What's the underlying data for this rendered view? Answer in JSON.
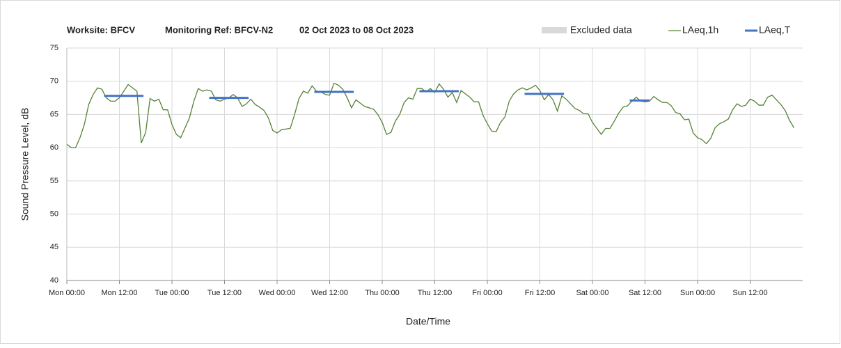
{
  "chart_data": {
    "type": "line",
    "title": [
      "Worksite: BFCV",
      "Monitoring Ref: BFCV-N2",
      "02 Oct 2023 to 08 Oct 2023"
    ],
    "xlabel": "Date/Time",
    "ylabel": "Sound Pressure Level, dB",
    "legend_extra": {
      "name": "Excluded data",
      "color": "#d9d9d9"
    },
    "xlim": [
      0,
      168
    ],
    "ylim": [
      40,
      75
    ],
    "grid": true,
    "xticks": [
      {
        "value": 0,
        "label": "Mon 00:00"
      },
      {
        "value": 12,
        "label": "Mon 12:00"
      },
      {
        "value": 24,
        "label": "Tue 00:00"
      },
      {
        "value": 36,
        "label": "Tue 12:00"
      },
      {
        "value": 48,
        "label": "Wed 00:00"
      },
      {
        "value": 60,
        "label": "Wed 12:00"
      },
      {
        "value": 72,
        "label": "Thu 00:00"
      },
      {
        "value": 84,
        "label": "Thu 12:00"
      },
      {
        "value": 96,
        "label": "Fri 00:00"
      },
      {
        "value": 108,
        "label": "Fri 12:00"
      },
      {
        "value": 120,
        "label": "Sat 00:00"
      },
      {
        "value": 132,
        "label": "Sat 12:00"
      },
      {
        "value": 144,
        "label": "Sun 00:00"
      },
      {
        "value": 156,
        "label": "Sun 12:00"
      }
    ],
    "yticks": [
      40,
      45,
      50,
      55,
      60,
      65,
      70,
      75
    ],
    "series": [
      {
        "name": "LAeq,1h",
        "color": "#548235",
        "width": 1.3,
        "x": [
          0,
          1,
          2,
          3,
          4,
          5,
          6,
          7,
          8,
          9,
          10,
          11,
          12,
          13,
          14,
          15,
          16,
          17,
          18,
          19,
          20,
          21,
          22,
          23,
          24,
          25,
          26,
          27,
          28,
          29,
          30,
          31,
          32,
          33,
          34,
          35,
          36,
          37,
          38,
          39,
          40,
          41,
          42,
          43,
          44,
          45,
          46,
          47,
          48,
          49,
          50,
          51,
          52,
          53,
          54,
          55,
          56,
          57,
          58,
          59,
          60,
          61,
          62,
          63,
          64,
          65,
          66,
          67,
          68,
          69,
          70,
          71,
          72,
          73,
          74,
          75,
          76,
          77,
          78,
          79,
          80,
          81,
          82,
          83,
          84,
          85,
          86,
          87,
          88,
          89,
          90,
          91,
          92,
          93,
          94,
          95,
          96,
          97,
          98,
          99,
          100,
          101,
          102,
          103,
          104,
          105,
          106,
          107,
          108,
          109,
          110,
          111,
          112,
          113,
          114,
          115,
          116,
          117,
          118,
          119,
          120,
          121,
          122,
          123,
          124,
          125,
          126,
          127,
          128,
          129,
          130,
          131,
          132,
          133,
          134,
          135,
          136,
          137,
          138,
          139,
          140,
          141,
          142,
          143,
          144,
          145,
          146,
          147,
          148,
          149,
          150,
          151,
          152,
          153,
          154,
          155,
          156,
          157,
          158,
          159,
          160,
          161,
          162,
          163,
          164,
          165,
          166
        ],
        "values": [
          60.5,
          60,
          60,
          61.5,
          63.5,
          66.5,
          68,
          69,
          68.8,
          67.5,
          67,
          67,
          67.5,
          68.5,
          69.5,
          69,
          68.5,
          60.7,
          62.3,
          67.4,
          67,
          67.3,
          65.7,
          65.7,
          63.5,
          62,
          61.5,
          63,
          64.5,
          67,
          68.9,
          68.5,
          68.7,
          68.5,
          67.2,
          67,
          67.3,
          67.5,
          68,
          67.5,
          66.2,
          66.6,
          67.3,
          66.5,
          66.1,
          65.6,
          64.5,
          62.6,
          62.2,
          62.7,
          62.8,
          62.9,
          65,
          67.4,
          68.5,
          68.2,
          69.3,
          68.5,
          68.4,
          68,
          67.9,
          69.7,
          69.4,
          68.8,
          67.5,
          66,
          67.2,
          66.7,
          66.2,
          66,
          65.8,
          65,
          63.8,
          62,
          62.3,
          64,
          65,
          66.8,
          67.5,
          67.3,
          68.9,
          68.9,
          68.4,
          68.9,
          68.3,
          69.6,
          68.8,
          67.6,
          68.3,
          66.8,
          68.6,
          68.1,
          67.6,
          66.9,
          66.9,
          64.9,
          63.6,
          62.5,
          62.4,
          63.8,
          64.6,
          67,
          68.1,
          68.7,
          69,
          68.7,
          69,
          69.4,
          68.6,
          67.2,
          68,
          67.2,
          65.5,
          67.8,
          67.3,
          66.6,
          65.9,
          65.6,
          65.1,
          65.1,
          63.8,
          62.9,
          62,
          62.9,
          62.9,
          64,
          65.2,
          66.1,
          66.3,
          67,
          67.6,
          67,
          66.9,
          67,
          67.7,
          67.2,
          66.8,
          66.8,
          66.3,
          65.3,
          65.1,
          64.2,
          64.3,
          62.2,
          61.5,
          61.2,
          60.6,
          61.4,
          63,
          63.6,
          63.9,
          64.3,
          65.7,
          66.6,
          66.2,
          66.4,
          67.3,
          67,
          66.4,
          66.4,
          67.6,
          67.9,
          67.2,
          66.5,
          65.6,
          64.1,
          63
        ]
      },
      {
        "name": "LAeq,T",
        "color": "#4472c4",
        "width": 3,
        "x": [
          8.5,
          17.5,
          17.5,
          32.5,
          41.5,
          41.5,
          56.5,
          65.5,
          65.5,
          80.5,
          89.5,
          89.5,
          104.5,
          113.5,
          113.5,
          128.5,
          133
        ],
        "values": [
          67.8,
          67.8,
          null,
          67.5,
          67.5,
          null,
          68.4,
          68.4,
          null,
          68.5,
          68.5,
          null,
          68.1,
          68.1,
          null,
          67.1,
          67.1
        ]
      }
    ]
  }
}
